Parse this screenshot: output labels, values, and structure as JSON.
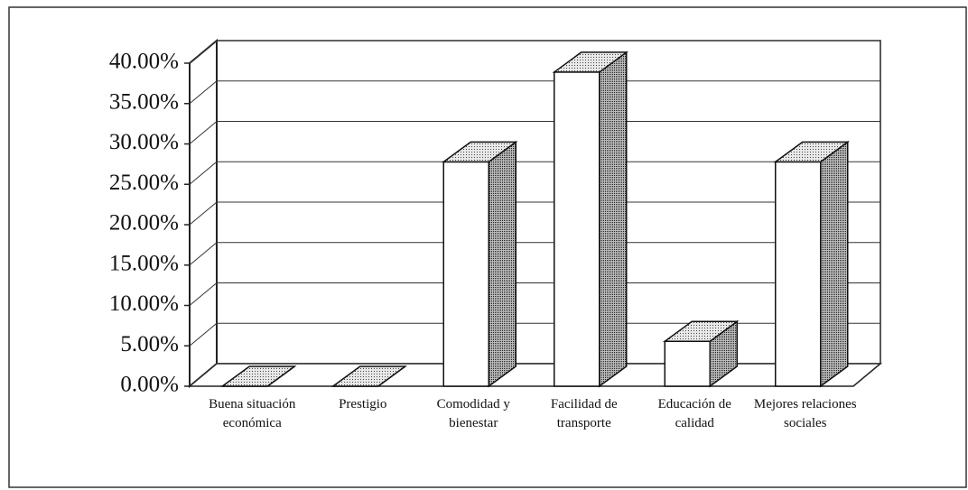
{
  "chart_data": {
    "type": "bar3d",
    "categories": [
      "Buena situación económica",
      "Prestigio",
      "Comodidad y bienestar",
      "Facilidad de transporte",
      "Educación de calidad",
      "Mejores relaciones sociales"
    ],
    "values": [
      0,
      0,
      27.78,
      38.89,
      5.56,
      27.78
    ],
    "ylim": [
      0,
      40
    ],
    "yticks": [
      {
        "value": 0,
        "label": "0.00%"
      },
      {
        "value": 5,
        "label": "5.00%"
      },
      {
        "value": 10,
        "label": "10.00%"
      },
      {
        "value": 15,
        "label": "15.00%"
      },
      {
        "value": 20,
        "label": "20.00%"
      },
      {
        "value": 25,
        "label": "25.00%"
      },
      {
        "value": 30,
        "label": "30.00%"
      },
      {
        "value": 35,
        "label": "35.00%"
      },
      {
        "value": 40,
        "label": "40.00%"
      }
    ],
    "grid": true,
    "color": "#ffffff"
  }
}
